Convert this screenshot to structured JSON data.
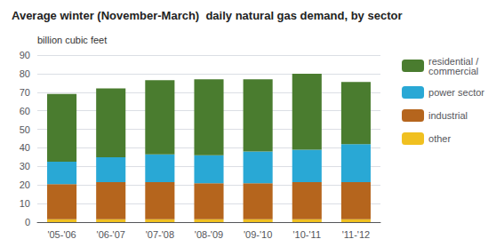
{
  "chart_data": {
    "type": "bar",
    "stacked": true,
    "title": "Average winter (November-March)  daily natural gas demand, by sector",
    "ylabel": "billion cubic feet",
    "categories": [
      "'05-'06",
      "'06-'07",
      "'07-'08",
      "'08-'09",
      "'09-'10",
      "'10-'11",
      "'11-'12"
    ],
    "series": [
      {
        "name": "other",
        "color": "#f0c020",
        "values": [
          1.5,
          1.5,
          1.5,
          1.5,
          1.5,
          1.5,
          1.5
        ]
      },
      {
        "name": "industrial",
        "color": "#b5651d",
        "values": [
          19.0,
          20.0,
          20.0,
          19.5,
          19.5,
          20.0,
          20.0
        ]
      },
      {
        "name": "power sector",
        "color": "#29a8d5",
        "values": [
          12.0,
          13.5,
          15.0,
          15.0,
          17.0,
          17.5,
          20.5
        ]
      },
      {
        "name": "residential /\ncommercial",
        "color": "#4a7c2f",
        "values": [
          36.5,
          37.0,
          40.0,
          41.0,
          39.0,
          41.0,
          33.5
        ]
      }
    ],
    "ylim": [
      0,
      90
    ],
    "yticks": [
      0,
      10,
      20,
      30,
      40,
      50,
      60,
      70,
      80,
      90
    ],
    "grid": true,
    "legend": "right"
  }
}
